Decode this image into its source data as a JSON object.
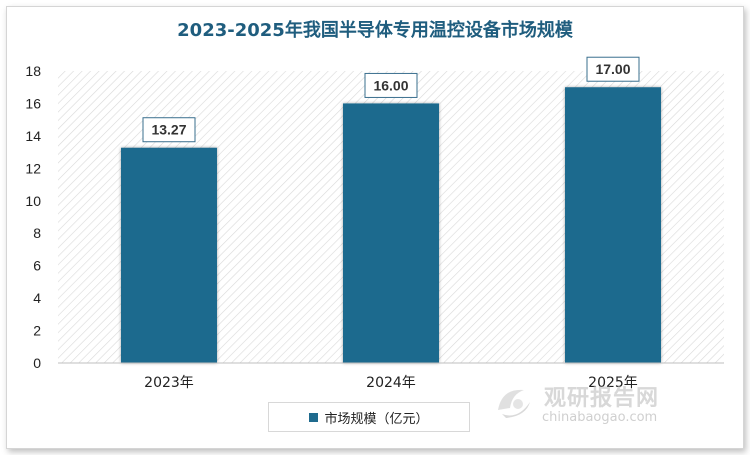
{
  "chart_data": {
    "type": "bar",
    "title": "2023-2025年我国半导体专用温控设备市场规模",
    "categories": [
      "2023年",
      "2024年",
      "2025年"
    ],
    "series": [
      {
        "name": "市场规模（亿元）",
        "values": [
          13.27,
          16.0,
          17.0
        ]
      }
    ],
    "data_labels": [
      "13.27",
      "16.00",
      "17.00"
    ],
    "y_ticks": [
      0,
      2,
      4,
      6,
      8,
      10,
      12,
      14,
      16,
      18
    ],
    "ylim": [
      0,
      18
    ],
    "xlabel": "",
    "ylabel": "",
    "legend_position": "bottom",
    "colors": {
      "bar": "#1f6b8e",
      "title": "#1f5d7e"
    }
  },
  "watermark": {
    "cn": "观研报告网",
    "en": "chinabaogao.com"
  }
}
